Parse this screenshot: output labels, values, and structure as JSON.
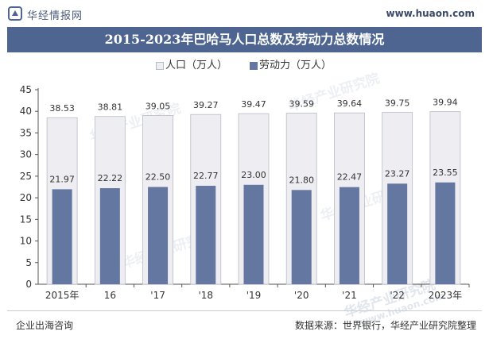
{
  "header": {
    "logo_text": "华经情报网",
    "url": "www.huaon.com"
  },
  "colors": {
    "population": "#eeeef2",
    "population_border": "#b8bcc6",
    "labor": "#6477a0",
    "title_bg": "#4d6590",
    "axis": "#555555"
  },
  "chart_data": {
    "type": "bar",
    "title": "2015-2023年巴哈马人口总数及劳动力总数情况",
    "categories": [
      "2015年",
      "16",
      "'17",
      "'18",
      "'19",
      "'20",
      "'21",
      "'22",
      "2023年"
    ],
    "series": [
      {
        "name": "人口（万人）",
        "values": [
          38.53,
          38.81,
          39.05,
          39.27,
          39.47,
          39.59,
          39.64,
          39.75,
          39.94
        ]
      },
      {
        "name": "劳动力（万人）",
        "values": [
          21.97,
          22.22,
          22.5,
          22.77,
          23.0,
          21.8,
          22.47,
          23.27,
          23.55
        ]
      }
    ],
    "value_labels": {
      "population": [
        "38.53",
        "38.81",
        "39.05",
        "39.27",
        "39.47",
        "39.59",
        "39.64",
        "39.75",
        "39.94"
      ],
      "labor": [
        "21.97",
        "22.22",
        "22.50",
        "22.77",
        "23.00",
        "21.80",
        "22.47",
        "23.27",
        "23.55"
      ]
    },
    "yticks": [
      "0",
      "5",
      "10",
      "15",
      "20",
      "25",
      "30",
      "35",
      "40",
      "45"
    ],
    "ylim": [
      0,
      45
    ],
    "xlabel": "",
    "ylabel": ""
  },
  "footer": {
    "left": "企业出海咨询",
    "right": "数据来源：世界银行，华经产业研究院整理"
  },
  "watermark": {
    "text": "华经产业研究院",
    "url": "www.huaon.com"
  }
}
